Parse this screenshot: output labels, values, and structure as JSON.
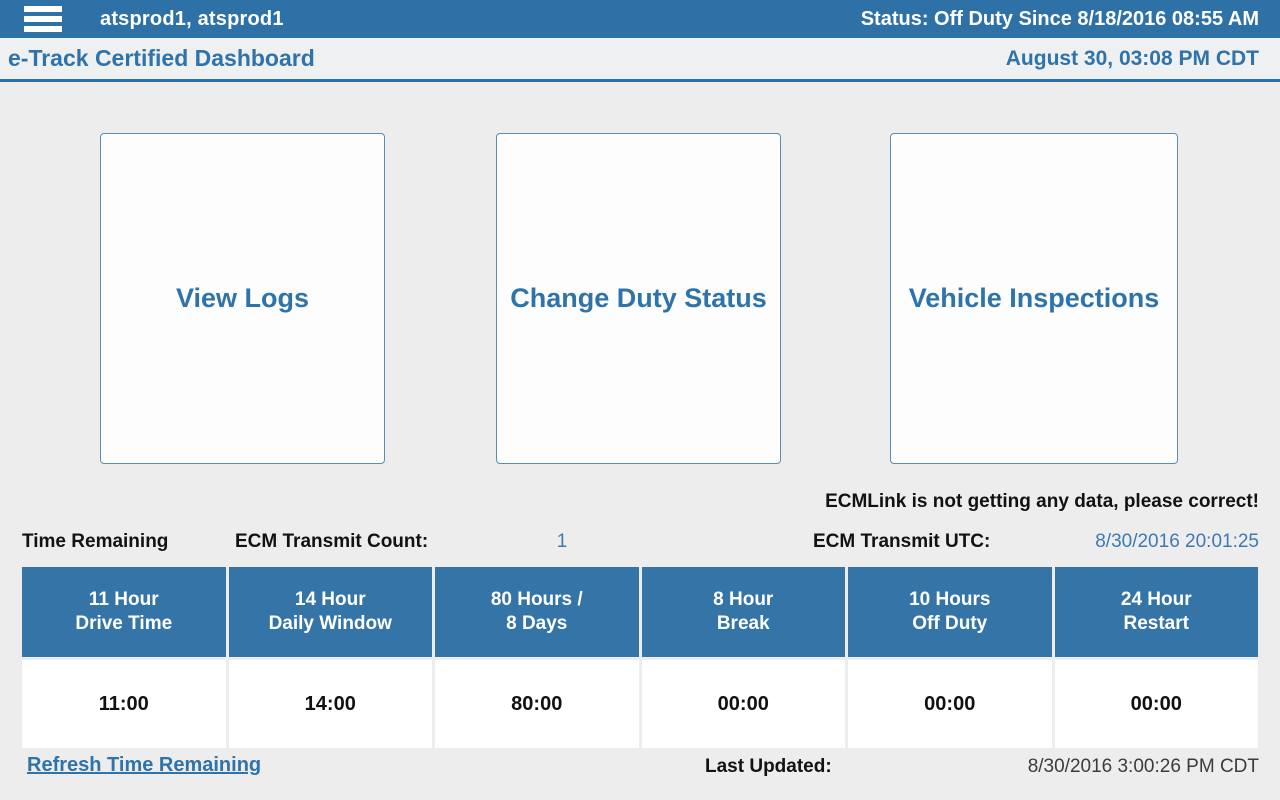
{
  "topbar": {
    "user": "atsprod1, atsprod1",
    "status": "Status: Off Duty Since 8/18/2016 08:55 AM"
  },
  "header": {
    "title": "e-Track Certified Dashboard",
    "datetime": "August 30, 03:08 PM CDT"
  },
  "cards": {
    "view_logs": "View Logs",
    "change_duty_status": "Change Duty Status",
    "vehicle_inspections": "Vehicle Inspections"
  },
  "alerts": {
    "ecm_warning": "ECMLink is not getting any data, please correct!"
  },
  "ecm_info": {
    "time_remaining_label": "Time Remaining",
    "transmit_count_label": "ECM Transmit Count:",
    "transmit_count_value": "1",
    "transmit_utc_label": "ECM Transmit UTC:",
    "transmit_utc_value": "8/30/2016 20:01:25"
  },
  "hours_table": {
    "columns": [
      "11 Hour\nDrive Time",
      "14 Hour\nDaily Window",
      "80 Hours /\n8 Days",
      "8 Hour\nBreak",
      "10 Hours\nOff Duty",
      "24 Hour\nRestart"
    ],
    "values": [
      "11:00",
      "14:00",
      "80:00",
      "00:00",
      "00:00",
      "00:00"
    ]
  },
  "footer": {
    "refresh_link": "Refresh Time Remaining",
    "last_updated_label": "Last Updated:",
    "last_updated_value": "8/30/2016 3:00:26 PM CDT"
  },
  "colors": {
    "primary_blue": "#2e71a6",
    "accent_text_blue": "#2e73a9",
    "table_header_blue": "#3574a6",
    "value_blue": "#3d7ab2",
    "background_gray": "#ededed",
    "titlebar_gray": "#eef0f1"
  }
}
